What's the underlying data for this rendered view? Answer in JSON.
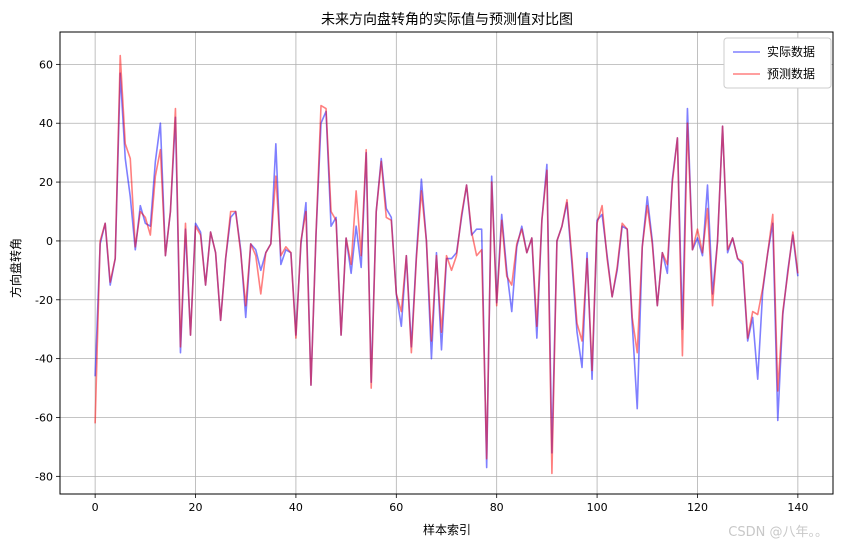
{
  "watermark": "CSDN @八年。。",
  "chart_data": {
    "type": "line",
    "title": "未来方向盘转角的实际值与预测值对比图",
    "xlabel": "样本索引",
    "ylabel": "方向盘转角",
    "xlim": [
      -7,
      147
    ],
    "ylim": [
      -86,
      71
    ],
    "xticks": [
      0,
      20,
      40,
      60,
      80,
      100,
      120,
      140
    ],
    "yticks": [
      -80,
      -60,
      -40,
      -20,
      0,
      20,
      40,
      60
    ],
    "grid": true,
    "legend_position": "top-right",
    "series": [
      {
        "name": "实际数据",
        "color": "#0000ff",
        "alpha": 0.5,
        "values": [
          -46,
          -1,
          6,
          -15,
          -6,
          57,
          28,
          15,
          -3,
          12,
          6,
          5,
          27,
          40,
          -5,
          10,
          42,
          -38,
          4,
          -32,
          6,
          3,
          -15,
          3,
          -4,
          -27,
          -6,
          8,
          10,
          -3,
          -26,
          -1,
          -3,
          -10,
          -4,
          -1,
          33,
          -8,
          -3,
          -4,
          -32,
          -1,
          13,
          -49,
          2,
          40,
          44,
          5,
          8,
          -32,
          1,
          -11,
          5,
          -9,
          30,
          -48,
          10,
          28,
          11,
          8,
          -18,
          -29,
          -5,
          -36,
          -5,
          21,
          0,
          -40,
          -4,
          -37,
          -6,
          -6,
          -4,
          8,
          19,
          2,
          4,
          4,
          -77,
          22,
          -21,
          9,
          -10,
          -24,
          -2,
          5,
          -4,
          1,
          -33,
          7,
          26,
          -72,
          0,
          5,
          13,
          -8,
          -31,
          -43,
          -4,
          -47,
          7,
          9,
          -5,
          -19,
          -10,
          5,
          4,
          -28,
          -57,
          -2,
          15,
          0,
          -22,
          -4,
          -11,
          21,
          35,
          -30,
          45,
          -3,
          1,
          -5,
          19,
          -18,
          0,
          39,
          -4,
          1,
          -6,
          -8,
          -34,
          -26,
          -47,
          -17,
          -4,
          6,
          -61,
          -25,
          -10,
          2,
          -12
        ]
      },
      {
        "name": "预测数据",
        "color": "#ff0000",
        "alpha": 0.5,
        "values": [
          -62,
          0,
          6,
          -14,
          -6,
          63,
          33,
          28,
          -2,
          10,
          8,
          2,
          22,
          31,
          -5,
          10,
          45,
          -36,
          6,
          -32,
          5,
          2,
          -15,
          3,
          -4,
          -27,
          -6,
          10,
          10,
          -4,
          -22,
          -1,
          -5,
          -18,
          -4,
          -1,
          22,
          -5,
          -2,
          -4,
          -33,
          0,
          10,
          -49,
          2,
          46,
          45,
          10,
          7,
          -32,
          1,
          -8,
          17,
          -5,
          31,
          -50,
          10,
          27,
          8,
          7,
          -18,
          -24,
          -5,
          -38,
          -6,
          17,
          0,
          -34,
          -5,
          -31,
          -5,
          -10,
          -5,
          9,
          19,
          3,
          -5,
          -3,
          -74,
          20,
          -22,
          7,
          -12,
          -15,
          -1,
          4,
          -4,
          1,
          -29,
          7,
          24,
          -79,
          0,
          5,
          14,
          -6,
          -28,
          -34,
          -6,
          -44,
          6,
          12,
          -6,
          -19,
          -9,
          6,
          4,
          -26,
          -38,
          -2,
          12,
          -1,
          -22,
          -4,
          -8,
          20,
          35,
          -39,
          40,
          -3,
          4,
          -4,
          11,
          -22,
          0,
          39,
          -3,
          1,
          -6,
          -7,
          -33,
          -24,
          -25,
          -16,
          -4,
          9,
          -51,
          -24,
          -11,
          3,
          -11
        ]
      }
    ]
  }
}
